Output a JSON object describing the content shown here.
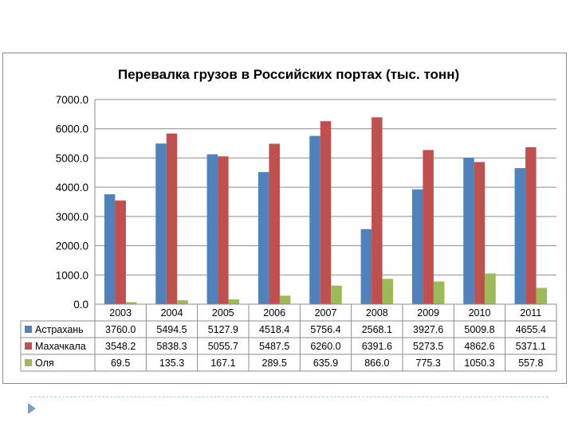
{
  "chart_data": {
    "type": "bar",
    "title": "Перевалка грузов в Российских портах (тыс. тонн)",
    "categories": [
      "2003",
      "2004",
      "2005",
      "2006",
      "2007",
      "2008",
      "2009",
      "2010",
      "2011"
    ],
    "ylim": [
      0,
      7000
    ],
    "yticks": [
      "0.0",
      "1000.0",
      "2000.0",
      "3000.0",
      "4000.0",
      "5000.0",
      "6000.0",
      "7000.0"
    ],
    "grid": true,
    "legend": "data-table-below",
    "series": [
      {
        "name": "Астрахань",
        "color": "#4f81bd",
        "values": [
          3760.0,
          5494.5,
          5127.9,
          4518.4,
          5756.4,
          2568.1,
          3927.6,
          5009.8,
          4655.4
        ],
        "labels": [
          "3760.0",
          "5494.5",
          "5127.9",
          "4518.4",
          "5756.4",
          "2568.1",
          "3927.6",
          "5009.8",
          "4655.4"
        ]
      },
      {
        "name": "Махачкала",
        "color": "#c0504d",
        "values": [
          3548.2,
          5838.3,
          5055.7,
          5487.5,
          6260.0,
          6391.6,
          5273.5,
          4862.6,
          5371.1
        ],
        "labels": [
          "3548.2",
          "5838.3",
          "5055.7",
          "5487.5",
          "6260.0",
          "6391.6",
          "5273.5",
          "4862.6",
          "5371.1"
        ]
      },
      {
        "name": "Оля",
        "color": "#9bbb59",
        "values": [
          69.5,
          135.3,
          167.1,
          289.5,
          635.9,
          866.0,
          775.3,
          1050.3,
          557.8
        ],
        "labels": [
          "69.5",
          "135.3",
          "167.1",
          "289.5",
          "635.9",
          "866.0",
          "775.3",
          "1050.3",
          "557.8"
        ]
      }
    ]
  }
}
